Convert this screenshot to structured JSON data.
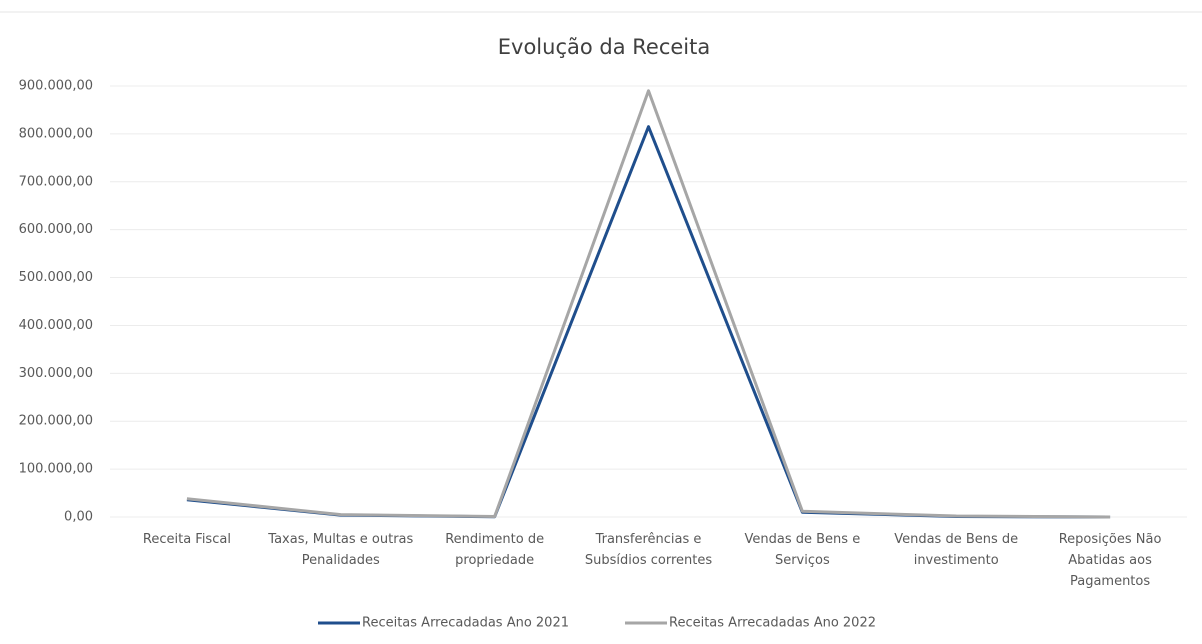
{
  "chart_data": {
    "type": "line",
    "title": "Evolução da Receita",
    "categories": [
      "Receita Fiscal",
      "Taxas, Multas e outras Penalidades",
      "Rendimento de propriedade",
      "Transferências e Subsídios correntes",
      "Vendas de Bens e Serviços",
      "Vendas de Bens de investimento",
      "Reposições Não Abatidas aos Pagamentos"
    ],
    "series": [
      {
        "name": "Receitas Arrecadadas Ano 2021",
        "color": "#1f4e8c",
        "values": [
          36000,
          4000,
          500,
          815000,
          10000,
          1000,
          0
        ]
      },
      {
        "name": "Receitas Arrecadadas Ano 2022",
        "color": "#a6a6a6",
        "values": [
          38000,
          5000,
          1000,
          890000,
          12000,
          2000,
          0
        ]
      }
    ],
    "ylim": [
      0,
      900000
    ],
    "yticks": [
      {
        "value": 0,
        "label": "0,00"
      },
      {
        "value": 100000,
        "label": "100.000,00"
      },
      {
        "value": 200000,
        "label": "200.000,00"
      },
      {
        "value": 300000,
        "label": "300.000,00"
      },
      {
        "value": 400000,
        "label": "400.000,00"
      },
      {
        "value": 500000,
        "label": "500.000,00"
      },
      {
        "value": 600000,
        "label": "600.000,00"
      },
      {
        "value": 700000,
        "label": "700.000,00"
      },
      {
        "value": 800000,
        "label": "800.000,00"
      },
      {
        "value": 900000,
        "label": "900.000,00"
      }
    ],
    "grid": true,
    "legend": "bottom"
  }
}
